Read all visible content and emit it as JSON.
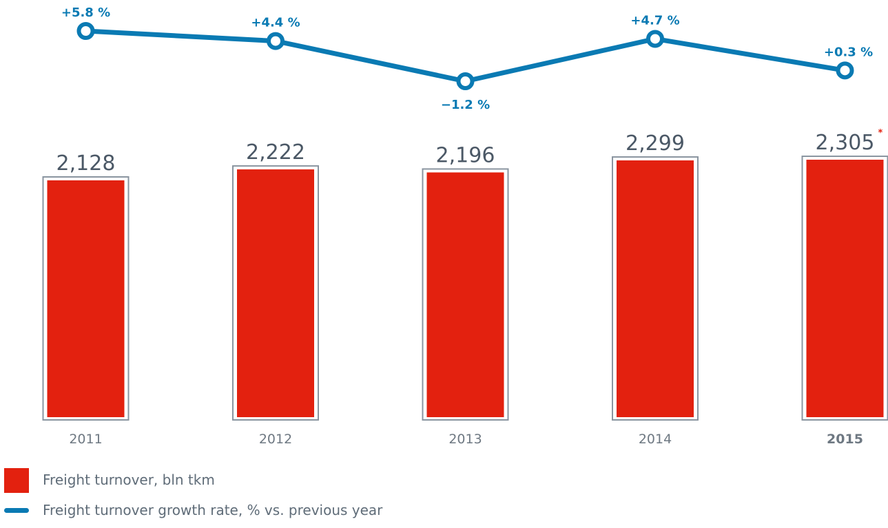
{
  "colors": {
    "bar_fill": "#e3210f",
    "bar_frame": "#8a95a0",
    "line": "#0a7ab3",
    "value_label": "#4b5866",
    "year_label": "#6e7882",
    "footnote_marker": "#e3210f"
  },
  "chart_data": {
    "type": "bar",
    "categories": [
      "2011",
      "2012",
      "2013",
      "2014",
      "2015"
    ],
    "highlight_category": "2015",
    "series": [
      {
        "name": "Freight turnover, bln tkm",
        "type": "bar",
        "values": [
          2128,
          2222,
          2196,
          2299,
          2305
        ],
        "labels": [
          "2,128",
          "2,222",
          "2,196",
          "2,299",
          "2,305"
        ],
        "footnote_marks": [
          "",
          "",
          "",
          "",
          "*"
        ]
      },
      {
        "name": "Freight turnover growth rate, % vs. previous year",
        "type": "line",
        "values": [
          5.8,
          4.4,
          -1.2,
          4.7,
          0.3
        ],
        "labels": [
          "+5.8 %",
          "+4.4 %",
          "−1.2 %",
          "+4.7 %",
          "+0.3 %"
        ],
        "label_positions": [
          "above",
          "above",
          "below",
          "above",
          "above"
        ]
      }
    ],
    "title": "",
    "xlabel": "",
    "ylabel": "",
    "grid": false,
    "legend_position": "bottom-left"
  },
  "legend": {
    "items": [
      {
        "label": "Freight turnover, bln tkm",
        "icon": "red-square"
      },
      {
        "label": "Freight turnover growth rate, % vs. previous year",
        "icon": "blue-line"
      }
    ]
  }
}
